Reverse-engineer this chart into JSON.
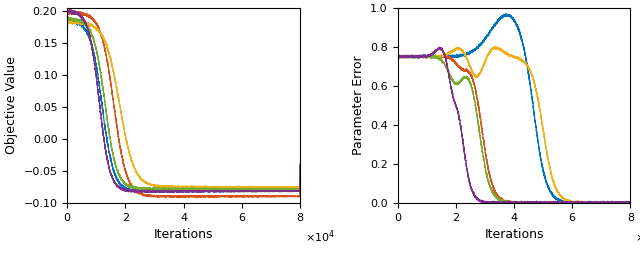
{
  "xlim": [
    0,
    80000
  ],
  "left_ylim": [
    -0.1,
    0.205
  ],
  "right_ylim": [
    0,
    1.0
  ],
  "left_yticks": [
    -0.1,
    -0.05,
    0,
    0.05,
    0.1,
    0.15,
    0.2
  ],
  "right_yticks": [
    0,
    0.2,
    0.4,
    0.6,
    0.8,
    1.0
  ],
  "xticks": [
    0,
    20000,
    40000,
    60000,
    80000
  ],
  "xlabel": "Iterations",
  "left_ylabel": "Objective Value",
  "right_ylabel": "Parameter Error",
  "colors_left": [
    "#0072BD",
    "#D95319",
    "#EDB120",
    "#77AC30",
    "#7E2F8E"
  ],
  "colors_right": [
    "#0072BD",
    "#D95319",
    "#EDB120",
    "#77AC30",
    "#7E2F8E"
  ]
}
